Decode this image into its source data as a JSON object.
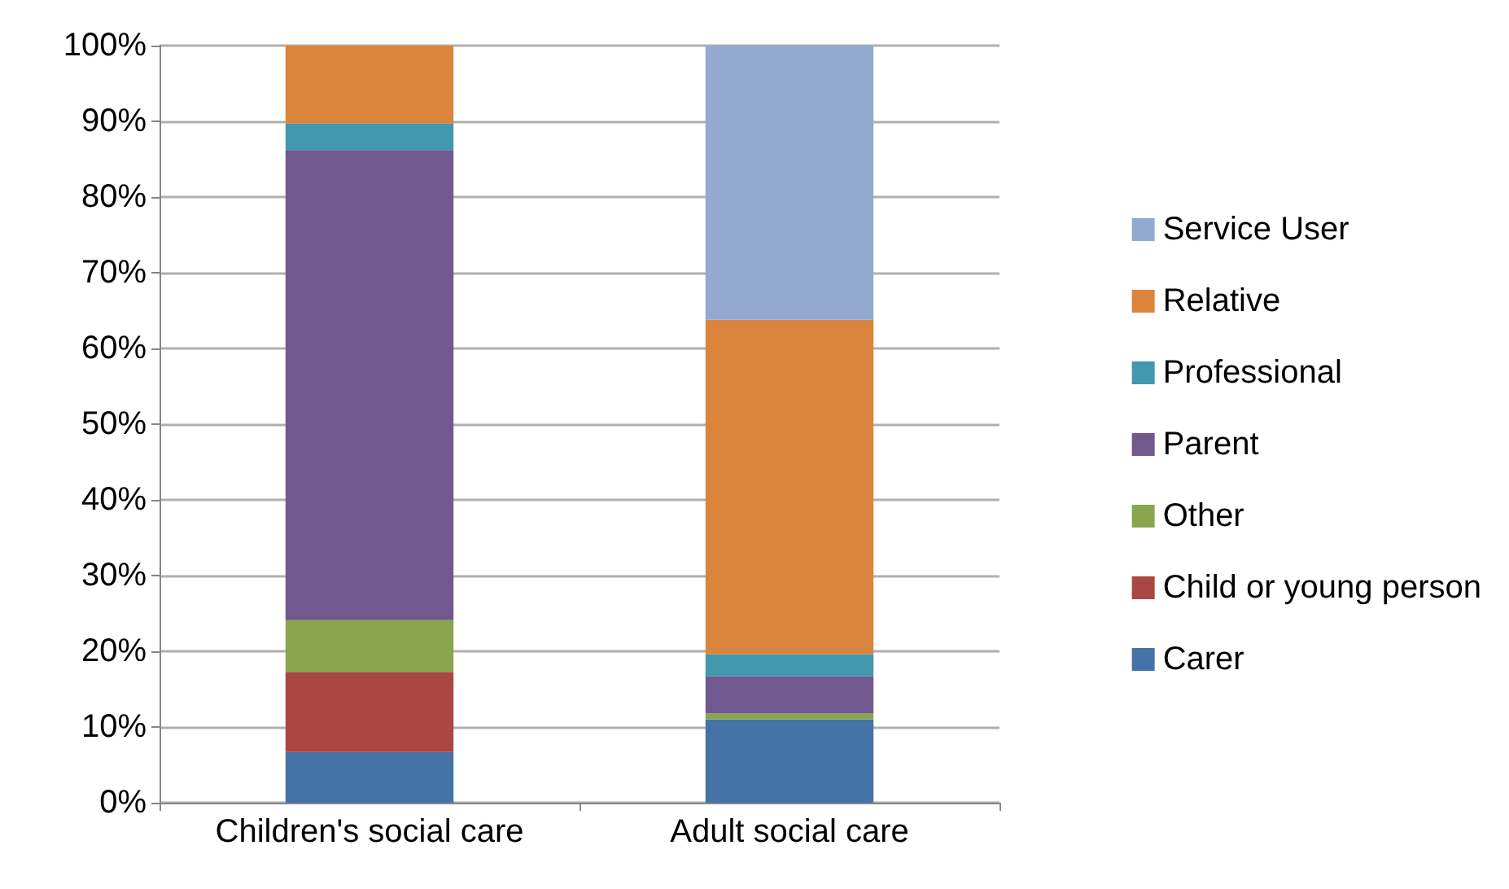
{
  "chart_data": {
    "type": "bar",
    "stacked": true,
    "categories": [
      "Children's social care",
      "Adult social care"
    ],
    "series": [
      {
        "name": "Carer",
        "color": "#4572a7",
        "values": [
          6.7,
          11.0
        ]
      },
      {
        "name": "Child or young person",
        "color": "#aa4643",
        "values": [
          10.5,
          0
        ]
      },
      {
        "name": "Other",
        "color": "#89a54e",
        "values": [
          6.9,
          0.8
        ]
      },
      {
        "name": "Parent",
        "color": "#71588f",
        "values": [
          62.1,
          4.9
        ]
      },
      {
        "name": "Professional",
        "color": "#4198af",
        "values": [
          3.5,
          2.9
        ]
      },
      {
        "name": "Relative",
        "color": "#db843d",
        "values": [
          10.3,
          44.2
        ]
      },
      {
        "name": "Service User",
        "color": "#93a9cf",
        "values": [
          0,
          36.2
        ]
      }
    ],
    "ylim": [
      0,
      100
    ],
    "yticks": [
      {
        "value": 0,
        "label": "0%"
      },
      {
        "value": 10,
        "label": "10%"
      },
      {
        "value": 20,
        "label": "20%"
      },
      {
        "value": 30,
        "label": "30%"
      },
      {
        "value": 40,
        "label": "40%"
      },
      {
        "value": 50,
        "label": "50%"
      },
      {
        "value": 60,
        "label": "60%"
      },
      {
        "value": 70,
        "label": "70%"
      },
      {
        "value": 80,
        "label": "80%"
      },
      {
        "value": 90,
        "label": "90%"
      },
      {
        "value": 100,
        "label": "100%"
      }
    ],
    "grid": "y",
    "legend": "right"
  }
}
